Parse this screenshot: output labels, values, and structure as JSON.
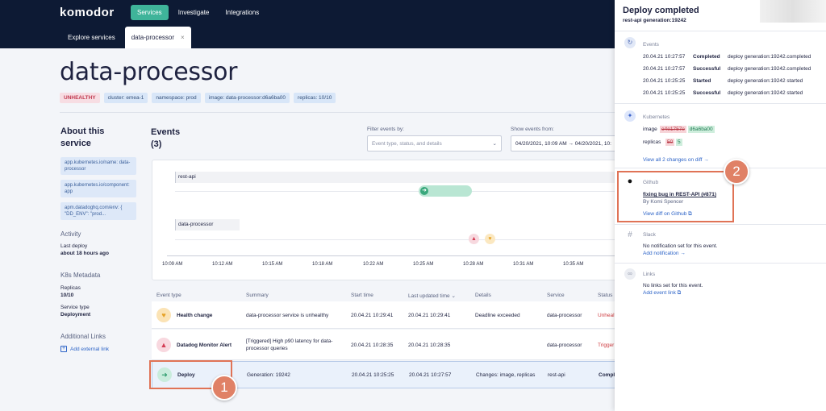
{
  "brand": "komodor",
  "nav": {
    "services": "Services",
    "investigate": "Investigate",
    "integrations": "Integrations"
  },
  "tabs": {
    "explore": "Explore services",
    "current": "data-processor",
    "close": "×"
  },
  "service": {
    "title": "data-processor",
    "badges": [
      "UNHEALTHY",
      "cluster: emea-1",
      "namespace: prod",
      "image: data-processor:d6a6ba00",
      "replicas: 10/10"
    ]
  },
  "sidebar": {
    "about": "About this service",
    "labels": [
      "app.kubernetes.io/name: data-processor",
      "app.kubernetes.io/component: app",
      "apm.datadoghq.com/env: { \"DD_ENV\": \"prod..."
    ],
    "activity": "Activity",
    "last_deploy_label": "Last deploy",
    "last_deploy_value": "about 18 hours ago",
    "k8s_meta": "K8s Metadata",
    "replicas_label": "Replicas",
    "replicas_value": "10/10",
    "service_type_label": "Service type",
    "service_type_value": "Deployment",
    "additional_links": "Additional Links",
    "add_link": "Add external link"
  },
  "events": {
    "title": "Events",
    "count": "(3)",
    "filter_label": "Filter events by:",
    "filter_placeholder": "Event type, status, and details",
    "show_from_label": "Show events from:",
    "show_from_value": "04/20/2021, 10:09 AM → 04/20/2021, 10:"
  },
  "timeline": {
    "rows": [
      "rest-api",
      "data-processor"
    ],
    "ticks": [
      "10:09 AM",
      "10:12 AM",
      "10:15 AM",
      "10:18 AM",
      "10:22 AM",
      "10:25 AM",
      "10:28 AM",
      "10:31 AM",
      "10:35 AM"
    ]
  },
  "table": {
    "headers": [
      "Event type",
      "Summary",
      "Start time",
      "Last updated time ⌄",
      "Details",
      "Service",
      "Status"
    ],
    "rows": [
      {
        "type": "Health change",
        "summary": "data-processor service is unhealthy",
        "start": "20.04.21 10:29:41",
        "updated": "20.04.21 10:29:41",
        "details": "Deadline exceeded",
        "service": "data-processor",
        "status": "Unhealt"
      },
      {
        "type": "Datadog Monitor Alert",
        "summary": "[Triggered] High p90 latency for data-processor queries",
        "start": "20.04.21 10:28:35",
        "updated": "20.04.21 10:28:35",
        "details": "",
        "service": "data-processor",
        "status": "Trigger"
      },
      {
        "type": "Deploy",
        "summary": "Generation: 19242",
        "start": "20.04.21 10:25:25",
        "updated": "20.04.21 10:27:57",
        "details": "Changes: image, replicas",
        "service": "rest-api",
        "status": "Compl"
      }
    ]
  },
  "callouts": [
    "1",
    "2"
  ],
  "panel": {
    "title": "Deploy completed",
    "subtitle": "rest-api generation:19242",
    "events_h": "Events",
    "events": [
      {
        "time": "20.04.21 10:27:57",
        "status": "Completed",
        "desc": "deploy generation:19242.completed"
      },
      {
        "time": "20.04.21 10:27:57",
        "status": "Successful",
        "desc": "deploy generation:19242.completed"
      },
      {
        "time": "20.04.21 10:25:25",
        "status": "Started",
        "desc": "deploy generation:19242 started"
      },
      {
        "time": "20.04.21 10:25:25",
        "status": "Successful",
        "desc": "deploy generation:19242 started"
      }
    ],
    "k8s_h": "Kubernetes",
    "image_label": "image",
    "image_old": "e4e1757e",
    "image_new": "d6a6ba00",
    "replicas_label": "replicas",
    "replicas_old": "50",
    "replicas_new": "5",
    "view_all": "View all 2 changes on diff →",
    "github_h": "Github",
    "commit": "fixing bug in REST-API (#871)",
    "commit_by": "By Komi Spencer",
    "view_diff": "View diff on Github ⧉",
    "slack_h": "Slack",
    "slack_msg": "No notification set for this event.",
    "slack_link": "Add notification →",
    "links_h": "Links",
    "links_msg": "No links set for this event.",
    "links_link": "Add event link ⧉"
  }
}
